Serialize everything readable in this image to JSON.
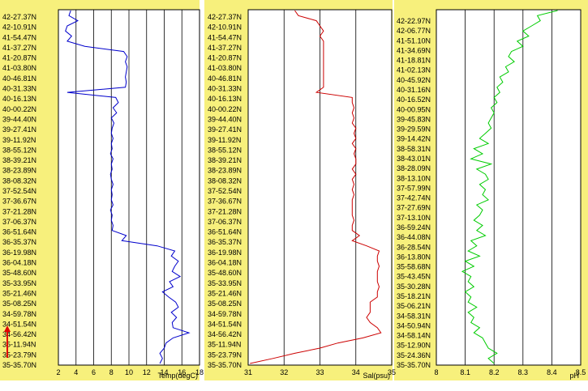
{
  "chart_data": [
    {
      "type": "line",
      "xlabel": "Temp(degC)",
      "xlim": [
        2,
        18
      ],
      "xticks": [
        "2",
        "4",
        "6",
        "8",
        "10",
        "12",
        "14",
        "16",
        "18"
      ],
      "latitude_labels": [
        "42-27.37N",
        "42-10.91N",
        "41-54.47N",
        "41-37.27N",
        "41-20.87N",
        "41-03.80N",
        "40-46.81N",
        "40-31.33N",
        "40-16.13N",
        "40-00.22N",
        "39-44.40N",
        "39-27.41N",
        "39-11.92N",
        "38-55.12N",
        "38-39.21N",
        "38-23.89N",
        "38-08.32N",
        "37-52.54N",
        "37-36.67N",
        "37-21.28N",
        "37-06.37N",
        "36-51.64N",
        "36-35.37N",
        "36-19.98N",
        "36-04.18N",
        "35-48.60N",
        "35-33.95N",
        "35-21.46N",
        "35-08.25N",
        "34-59.78N",
        "34-51.54N",
        "34-56.42N",
        "35-11.94N",
        "35-23.79N",
        "35-35.70N"
      ],
      "color": "#0000cc",
      "x": [
        3.4,
        3.2,
        4.2,
        3.0,
        2.8,
        3.5,
        3.0,
        5.0,
        9.4,
        9.8,
        9.6,
        9.8,
        9.7,
        9.6,
        9.7,
        9.6,
        3.0,
        8.5,
        8.8,
        8.2,
        8.6,
        8.0,
        8.3,
        8.1,
        8.0,
        8.2,
        8.0,
        8.1,
        7.9,
        8.2,
        8.0,
        8.1,
        7.9,
        8.0,
        8.2,
        8.0,
        8.1,
        8.0,
        8.2,
        7.9,
        8.1,
        8.0,
        8.2,
        8.1,
        9.7,
        9.2,
        13.2,
        15.2,
        14.8,
        15.6,
        15.2,
        14.9,
        15.8,
        14.6,
        15.0,
        13.8,
        14.5,
        15.3,
        15.6,
        14.8,
        15.4,
        14.9,
        15.0,
        16.8,
        15.0,
        14.2,
        14.0,
        13.5,
        13.8,
        13.5
      ]
    },
    {
      "type": "line",
      "xlabel": "Sal(psu)",
      "xlim": [
        31,
        35
      ],
      "xticks": [
        "31",
        "32",
        "33",
        "34",
        "35"
      ],
      "latitude_labels": [
        "42-27.37N",
        "42-10.91N",
        "41-54.47N",
        "41-37.27N",
        "41-20.87N",
        "41-03.80N",
        "40-46.81N",
        "40-31.33N",
        "40-16.13N",
        "40-00.22N",
        "39-44.40N",
        "39-27.41N",
        "39-11.92N",
        "38-55.12N",
        "38-39.21N",
        "38-23.89N",
        "38-08.32N",
        "37-52.54N",
        "37-36.67N",
        "37-21.28N",
        "37-06.37N",
        "36-51.64N",
        "36-35.37N",
        "36-19.98N",
        "36-04.18N",
        "35-48.60N",
        "35-33.95N",
        "35-21.46N",
        "35-08.25N",
        "34-59.78N",
        "34-51.54N",
        "34-56.42N",
        "35-11.94N",
        "35-23.79N",
        "35-35.70N"
      ],
      "color": "#cc0000",
      "x": [
        32.3,
        32.4,
        32.9,
        33.0,
        33.1,
        33.0,
        33.1,
        33.1,
        33.1,
        33.1,
        33.1,
        33.1,
        33.1,
        33.1,
        33.1,
        33.1,
        32.9,
        33.9,
        33.9,
        33.95,
        33.9,
        33.95,
        33.9,
        34.0,
        33.95,
        34.0,
        33.9,
        34.0,
        33.95,
        34.0,
        34.0,
        33.9,
        34.0,
        33.9,
        33.95,
        33.9,
        33.95,
        33.9,
        33.9,
        33.9,
        33.9,
        33.95,
        33.9,
        33.9,
        34.1,
        33.9,
        34.3,
        34.65,
        34.6,
        34.6,
        34.65,
        34.6,
        34.6,
        34.6,
        34.65,
        34.6,
        34.6,
        34.4,
        34.4,
        34.4,
        34.3,
        34.4,
        34.6,
        34.7,
        34.2,
        33.5,
        33.0,
        32.3,
        31.7,
        31.05
      ]
    },
    {
      "type": "line",
      "xlabel": "pH",
      "xlim": [
        8,
        8.5
      ],
      "xticks": [
        "8",
        "8.1",
        "8.2",
        "8.3",
        "8.4",
        "8.5"
      ],
      "latitude_labels": [
        "42-22.97N",
        "42-06.77N",
        "41-51.10N",
        "41-34.69N",
        "41-18.81N",
        "41-02.13N",
        "40-45.92N",
        "40-31.16N",
        "40-16.52N",
        "40-00.95N",
        "39-45.83N",
        "39-29.59N",
        "39-14.42N",
        "38-58.31N",
        "38-43.01N",
        "38-28.09N",
        "38-13.10N",
        "37-57.99N",
        "37-42.74N",
        "37-27.69N",
        "37-13.10N",
        "36-59.24N",
        "36-44.08N",
        "36-28.54N",
        "36-13.80N",
        "35-58.68N",
        "35-43.45N",
        "35-30.28N",
        "35-18.21N",
        "35-06.21N",
        "34-58.31N",
        "34-50.94N",
        "34-58.14N",
        "35-12.90N",
        "35-24.36N",
        "35-35.70N"
      ],
      "color": "#00cc00",
      "x": [
        8.42,
        8.35,
        8.36,
        8.33,
        8.3,
        8.32,
        8.28,
        8.3,
        8.26,
        8.25,
        8.27,
        8.24,
        8.25,
        8.22,
        8.23,
        8.21,
        8.22,
        8.2,
        8.21,
        8.19,
        8.2,
        8.19,
        8.18,
        8.19,
        8.17,
        8.15,
        8.18,
        8.13,
        8.16,
        8.12,
        8.19,
        8.14,
        8.17,
        8.18,
        8.15,
        8.17,
        8.16,
        8.18,
        8.14,
        8.16,
        8.15,
        8.13,
        8.16,
        8.14,
        8.17,
        8.12,
        8.14,
        8.11,
        8.15,
        8.1,
        8.13,
        8.09,
        8.12,
        8.11,
        8.13,
        8.1,
        8.12,
        8.11,
        8.14,
        8.11,
        8.13,
        8.12,
        8.15,
        8.13,
        8.16,
        8.17,
        8.18,
        8.21,
        8.18,
        8.2
      ]
    }
  ]
}
